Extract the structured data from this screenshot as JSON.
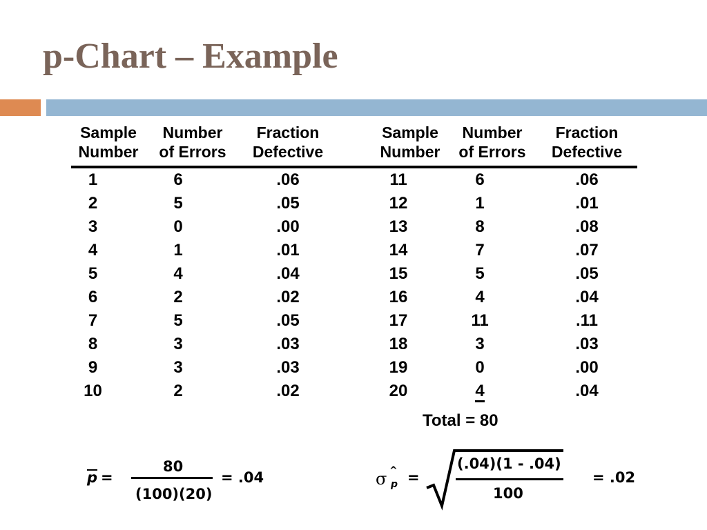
{
  "title": "p-Chart – Example",
  "headers": {
    "sample_number": [
      "Sample",
      "Number"
    ],
    "number_of_errors": [
      "Number",
      "of Errors"
    ],
    "fraction_defective": [
      "Fraction",
      "Defective"
    ]
  },
  "rows_left": [
    {
      "sample": "1",
      "errors": "6",
      "fraction": ".06"
    },
    {
      "sample": "2",
      "errors": "5",
      "fraction": ".05"
    },
    {
      "sample": "3",
      "errors": "0",
      "fraction": ".00"
    },
    {
      "sample": "4",
      "errors": "1",
      "fraction": ".01"
    },
    {
      "sample": "5",
      "errors": "4",
      "fraction": ".04"
    },
    {
      "sample": "6",
      "errors": "2",
      "fraction": ".02"
    },
    {
      "sample": "7",
      "errors": "5",
      "fraction": ".05"
    },
    {
      "sample": "8",
      "errors": "3",
      "fraction": ".03"
    },
    {
      "sample": "9",
      "errors": "3",
      "fraction": ".03"
    },
    {
      "sample": "10",
      "errors": "2",
      "fraction": ".02"
    }
  ],
  "rows_right": [
    {
      "sample": "11",
      "errors": "6",
      "fraction": ".06"
    },
    {
      "sample": "12",
      "errors": "1",
      "fraction": ".01"
    },
    {
      "sample": "13",
      "errors": "8",
      "fraction": ".08"
    },
    {
      "sample": "14",
      "errors": "7",
      "fraction": ".07"
    },
    {
      "sample": "15",
      "errors": "5",
      "fraction": ".05"
    },
    {
      "sample": "16",
      "errors": "4",
      "fraction": ".04"
    },
    {
      "sample": "17",
      "errors": "11",
      "fraction": ".11"
    },
    {
      "sample": "18",
      "errors": "3",
      "fraction": ".03"
    },
    {
      "sample": "19",
      "errors": "0",
      "fraction": ".00"
    },
    {
      "sample": "20",
      "errors": "4",
      "fraction": ".04"
    }
  ],
  "total": "Total = 80",
  "formula_p": {
    "lhs": "p",
    "eq": "=",
    "numerator": "80",
    "denominator": "(100)(20)",
    "result": "= .04"
  },
  "formula_sigma": {
    "sigma": "σ",
    "hat": "^",
    "sub": "p",
    "eq": "=",
    "numerator": "(.04)(1 - .04)",
    "denominator": "100",
    "result": "= .02"
  },
  "colors": {
    "title": "#7a6459",
    "accent_orange": "#de8a52",
    "accent_blue": "#94b6d2"
  }
}
